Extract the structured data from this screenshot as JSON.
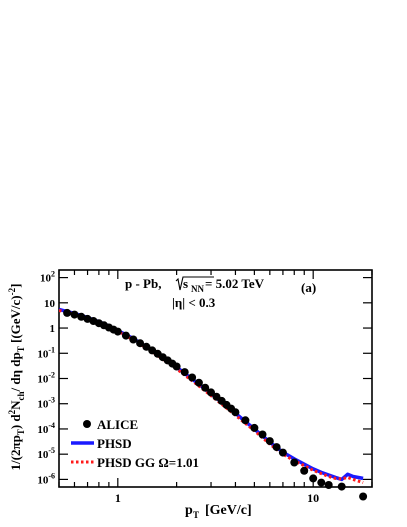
{
  "chart_data": {
    "type": "scatter",
    "title": "p - Pb, √s_NN = 5.02 TeV",
    "title_parts": {
      "system": "p - Pb,",
      "energy_value": " = 5.02 TeV"
    },
    "cut_label": "|η| < 0.3",
    "panel_label": "(a)",
    "xlabel": "p_T [GeV/c]",
    "ylabel": "1/(2πp_T) d²N_ch/ dη dp_T [(GeV/c)^-2]",
    "xscale": "log",
    "yscale": "log",
    "xlim": [
      0.5,
      20
    ],
    "ylim": [
      5e-07,
      200
    ],
    "x_tick_labels": [
      "1",
      "10"
    ],
    "y_tick_labels": [
      "10^-6",
      "10^-5",
      "10^-4",
      "10^-3",
      "10^-2",
      "10^-1",
      "1",
      "10",
      "10^2"
    ],
    "legend_position": "bottom-left",
    "series": [
      {
        "name": "ALICE",
        "style": "markers",
        "color": "#000000",
        "x": [
          0.55,
          0.6,
          0.65,
          0.7,
          0.75,
          0.8,
          0.85,
          0.9,
          0.95,
          1.0,
          1.1,
          1.2,
          1.3,
          1.4,
          1.5,
          1.6,
          1.7,
          1.8,
          1.9,
          2.0,
          2.2,
          2.4,
          2.6,
          2.8,
          3.0,
          3.2,
          3.4,
          3.6,
          3.8,
          4.0,
          4.5,
          5.0,
          5.5,
          6.0,
          6.5,
          7.0,
          8.0,
          9.0,
          10.0,
          11.0,
          12.0,
          14.0,
          18.0
        ],
        "y": [
          4.0,
          3.4,
          2.8,
          2.3,
          1.9,
          1.55,
          1.28,
          1.05,
          0.87,
          0.72,
          0.5,
          0.35,
          0.25,
          0.18,
          0.13,
          0.095,
          0.07,
          0.052,
          0.039,
          0.03,
          0.018,
          0.011,
          0.0068,
          0.0043,
          0.0028,
          0.0019,
          0.0013,
          0.0009,
          0.00064,
          0.00046,
          0.00022,
          0.00011,
          6e-05,
          3.3e-05,
          1.9e-05,
          1.15e-05,
          4.7e-06,
          2.2e-06,
          1.1e-06,
          7.5e-07,
          6e-07,
          5.2e-07,
          2.1e-07
        ]
      },
      {
        "name": "PHSD",
        "style": "line",
        "color": "#1a1aff",
        "x": [
          0.5,
          0.6,
          0.7,
          0.8,
          0.9,
          1.0,
          1.2,
          1.5,
          2.0,
          2.5,
          3.0,
          4.0,
          5.0,
          6.0,
          7.0,
          8.0,
          9.0,
          10.0,
          11.0,
          12.0,
          13.0,
          14.0,
          15.0,
          16.0,
          18.0
        ],
        "y": [
          5.5,
          3.8,
          2.6,
          1.8,
          1.2,
          0.8,
          0.38,
          0.13,
          0.028,
          0.0075,
          0.0025,
          0.00042,
          0.0001,
          3e-05,
          1.2e-05,
          6.5e-06,
          4e-06,
          2.6e-06,
          1.9e-06,
          1.5e-06,
          1.2e-06,
          1e-06,
          1.6e-06,
          1.3e-06,
          1.1e-06
        ]
      },
      {
        "name": "PHSD GG Ω=1.01",
        "style": "dotted",
        "color": "#ff1a1a",
        "x": [
          0.5,
          0.6,
          0.7,
          0.8,
          0.9,
          1.0,
          1.2,
          1.5,
          2.0,
          2.5,
          3.0,
          4.0,
          5.0,
          6.0,
          7.0,
          8.0,
          9.0,
          10.0,
          11.0,
          12.0,
          13.0,
          14.0,
          15.0,
          16.0,
          18.0
        ],
        "y": [
          5.0,
          3.5,
          2.4,
          1.65,
          1.1,
          0.75,
          0.34,
          0.115,
          0.024,
          0.0064,
          0.0021,
          0.00035,
          8.5e-05,
          2.5e-05,
          1e-05,
          5.5e-06,
          3.5e-06,
          2.3e-06,
          1.7e-06,
          1.3e-06,
          1.1e-06,
          1.05e-06,
          1.2e-06,
          1e-06,
          7.5e-07
        ]
      }
    ]
  }
}
